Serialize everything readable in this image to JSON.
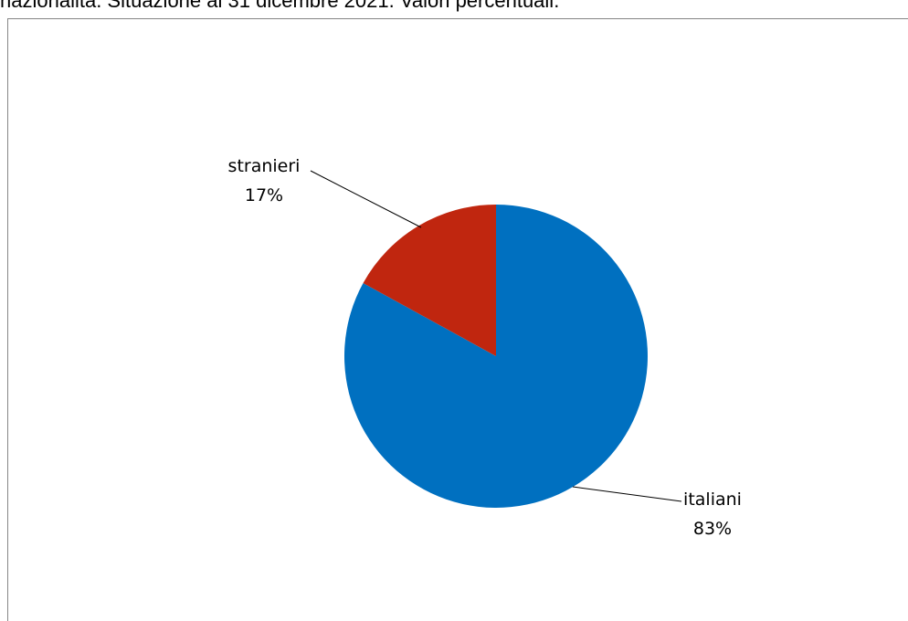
{
  "caption": "nazionalità. Situazione al 31 dicembre 2021. Valori percentuali.",
  "chart_data": {
    "type": "pie",
    "slices": [
      {
        "name": "italiani",
        "value": 83,
        "label": "83%",
        "color": "#0070C0"
      },
      {
        "name": "stranieri",
        "value": 17,
        "label": "17%",
        "color": "#C0260F"
      }
    ],
    "start_angle": "12 o'clock",
    "direction": "clockwise",
    "labels": "outside with leader lines"
  }
}
